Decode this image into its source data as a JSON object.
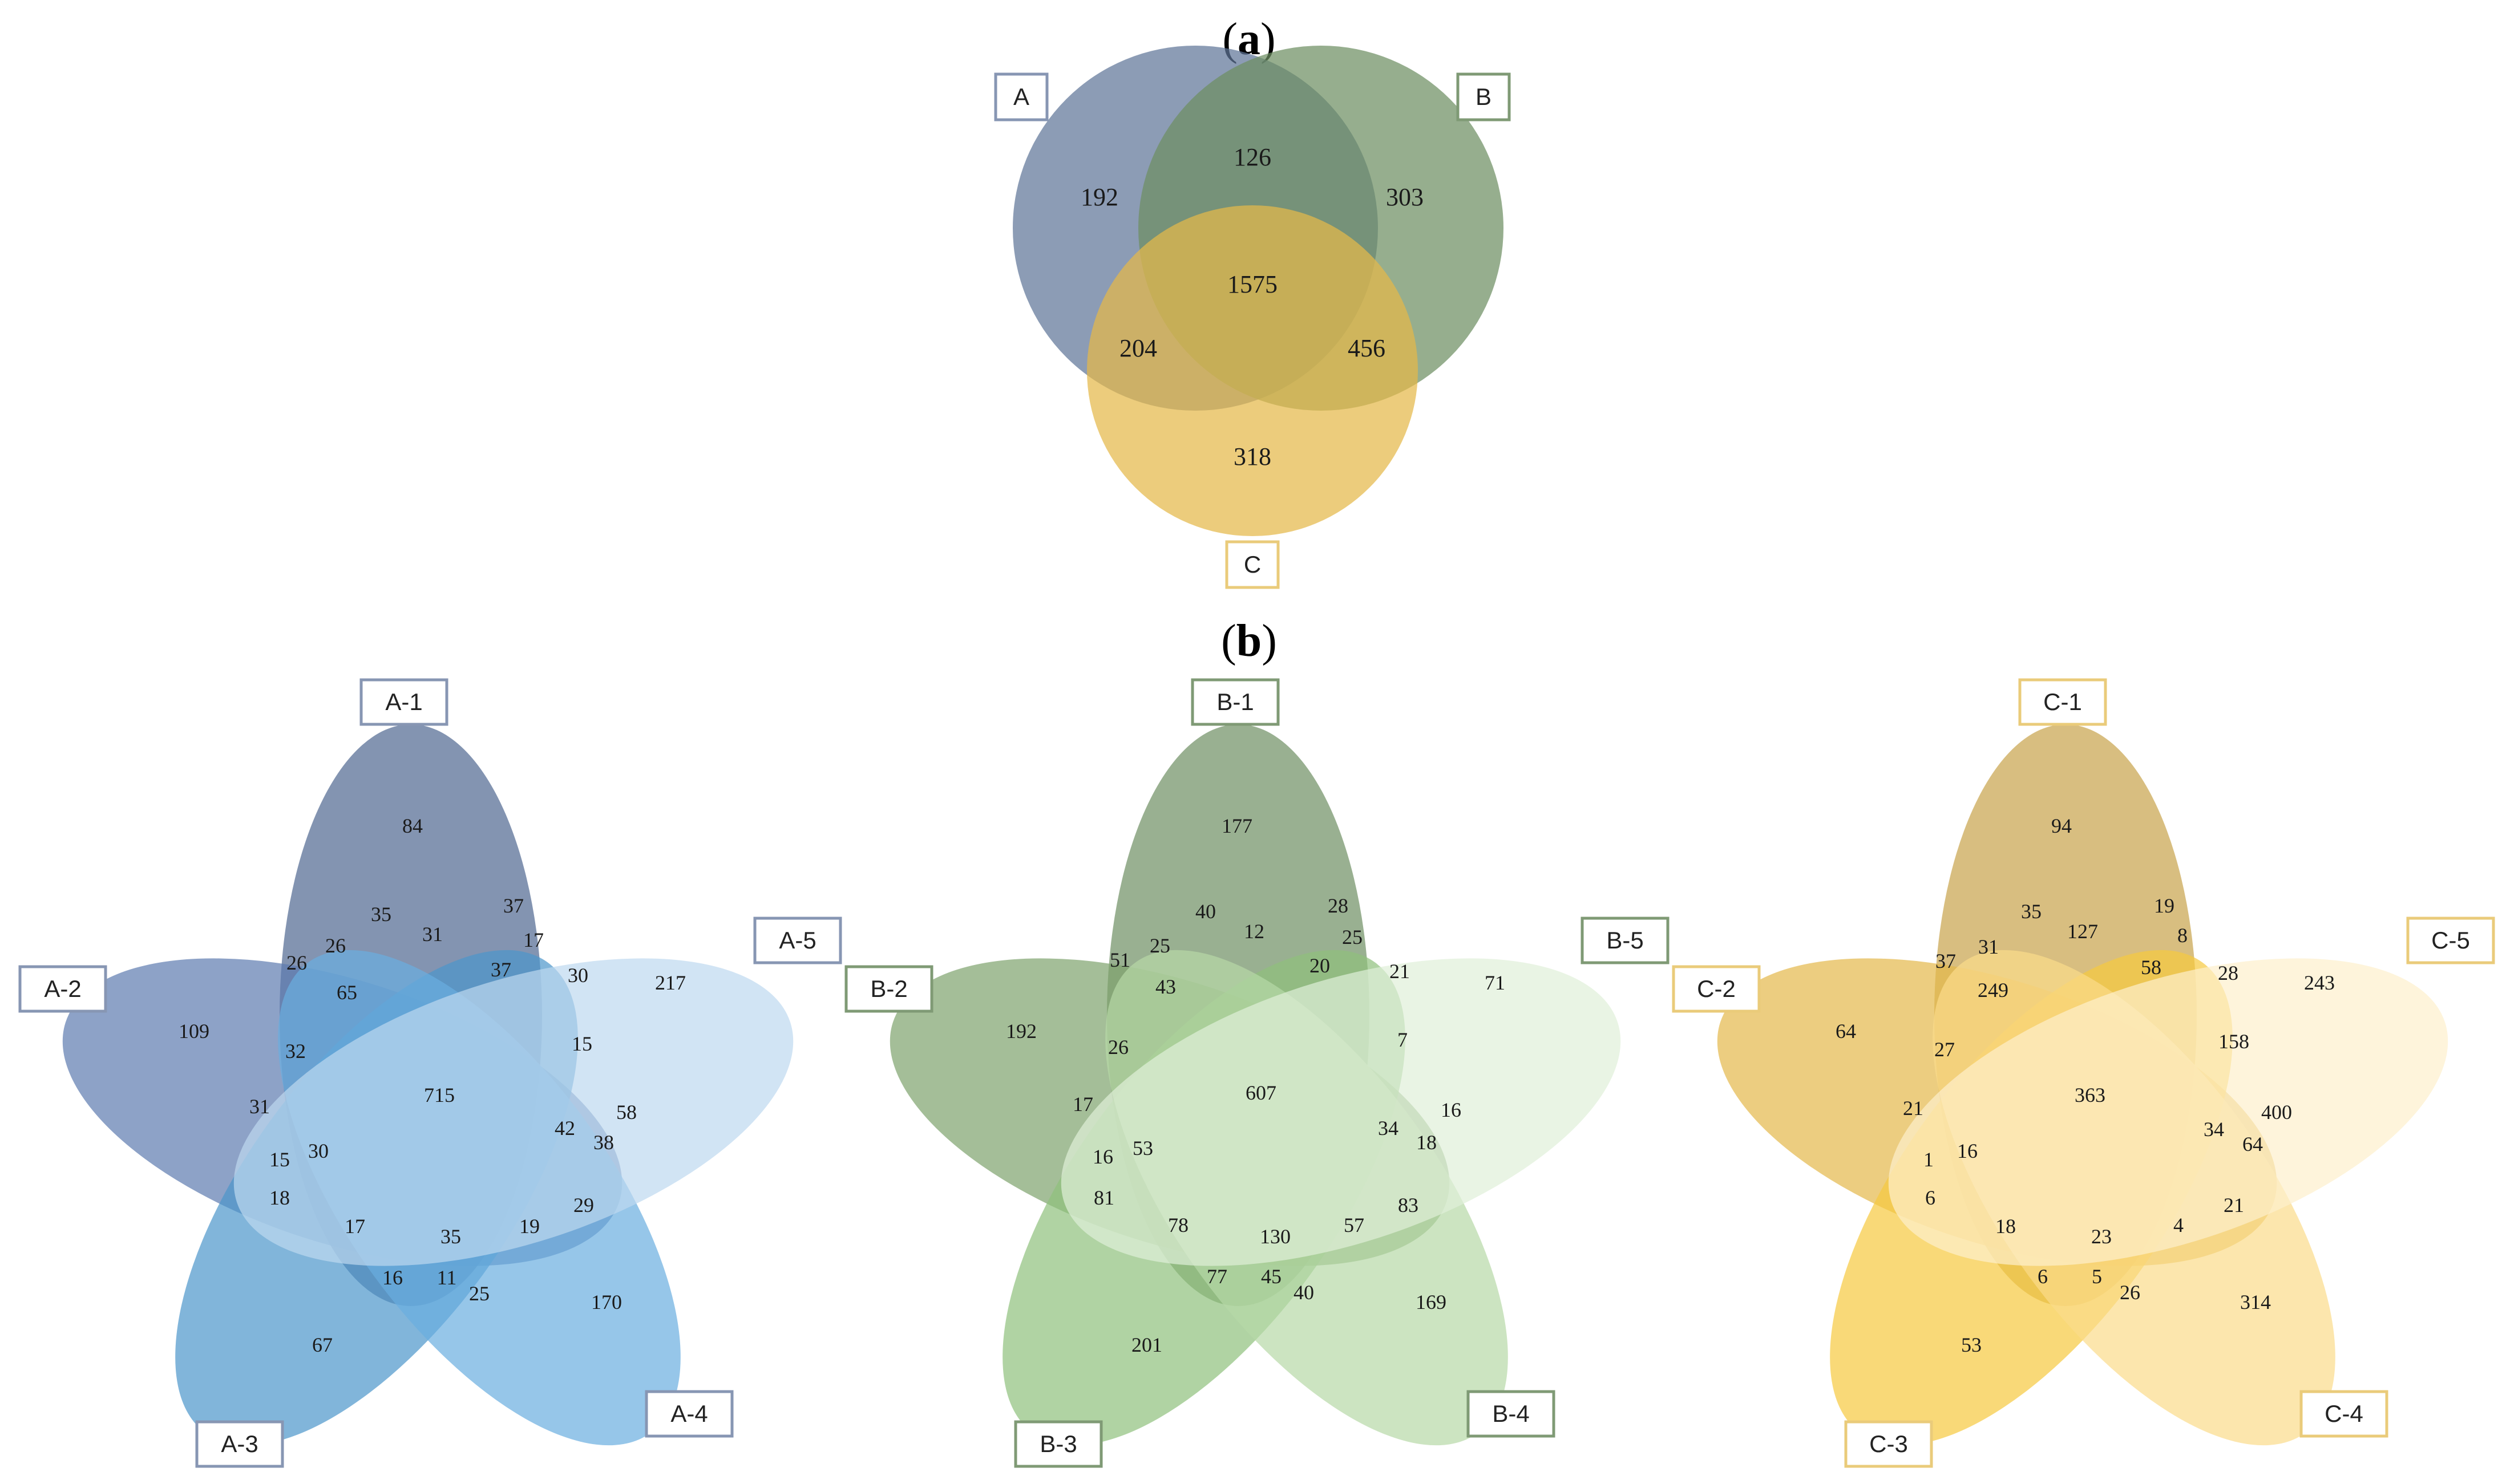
{
  "panel_a": {
    "tag_open": "(",
    "tag_letter": "a",
    "tag_close": ")",
    "sets": [
      {
        "name": "A",
        "color": "#5F7699"
      },
      {
        "name": "B",
        "color": "#6E8F62"
      },
      {
        "name": "C",
        "color": "#E4B84A"
      }
    ],
    "counts": {
      "A_only": "192",
      "B_only": "303",
      "C_only": "318",
      "A_B": "126",
      "A_C": "204",
      "B_C": "456",
      "A_B_C": "1575"
    }
  },
  "panel_b": {
    "tag_open": "(",
    "tag_letter": "b",
    "tag_close": ")",
    "diagrams": [
      {
        "group": "A",
        "colors": [
          "#4F6790",
          "#5C7BAF",
          "#4C95CB",
          "#6AAEE0",
          "#BDD9F0"
        ],
        "labels": [
          "A-1",
          "A-2",
          "A-3",
          "A-4",
          "A-5"
        ],
        "label_box_color": "#8796B3",
        "values": [
          "84",
          "109",
          "67",
          "170",
          "217",
          "35",
          "37",
          "26",
          "31",
          "17",
          "26",
          "65",
          "37",
          "30",
          "32",
          "715",
          "15",
          "31",
          "58",
          "42",
          "38",
          "15",
          "30",
          "18",
          "17",
          "35",
          "19",
          "29",
          "16",
          "11",
          "25"
        ]
      },
      {
        "group": "B",
        "colors": [
          "#6E8F62",
          "#7DA26C",
          "#8FC07C",
          "#B6D9A6",
          "#E0EFD8"
        ],
        "labels": [
          "B-1",
          "B-2",
          "B-3",
          "B-4",
          "B-5"
        ],
        "label_box_color": "#7F9A75",
        "values": [
          "177",
          "192",
          "201",
          "169",
          "71",
          "40",
          "28",
          "51",
          "25",
          "12",
          "25",
          "43",
          "20",
          "21",
          "26",
          "607",
          "7",
          "17",
          "16",
          "34",
          "18",
          "16",
          "53",
          "81",
          "78",
          "130",
          "57",
          "83",
          "77",
          "45",
          "40"
        ]
      },
      {
        "group": "C",
        "colors": [
          "#C8A24A",
          "#E4B84A",
          "#F7C93E",
          "#FBDB8A",
          "#FDF0CC"
        ],
        "labels": [
          "C-1",
          "C-2",
          "C-3",
          "C-4",
          "C-5"
        ],
        "label_box_color": "#EACB7A",
        "values": [
          "94",
          "64",
          "53",
          "314",
          "243",
          "35",
          "19",
          "37",
          "31",
          "127",
          "8",
          "249",
          "58",
          "28",
          "27",
          "363",
          "158",
          "21",
          "400",
          "34",
          "64",
          "1",
          "16",
          "6",
          "18",
          "23",
          "4",
          "21",
          "6",
          "5",
          "26"
        ]
      }
    ]
  }
}
